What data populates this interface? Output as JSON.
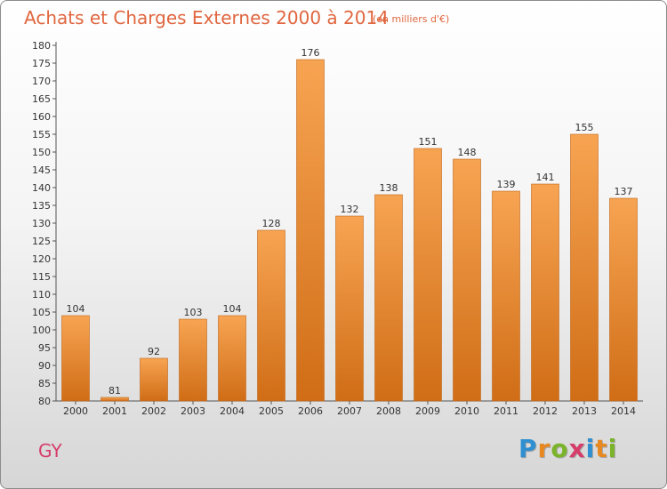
{
  "header": {
    "title": "Achats et Charges Externes 2000 à 2014",
    "unit": "(en milliers d'€)"
  },
  "commune": "GY",
  "logo": {
    "letters": [
      "P",
      "r",
      "o",
      "x",
      "i",
      "t",
      "i"
    ],
    "colors": [
      "#2f8fd0",
      "#e8891f",
      "#7bb42a",
      "#d63c6a",
      "#2f8fd0",
      "#e8891f",
      "#7bb42a"
    ]
  },
  "colors": {
    "bar_top": "#f7a452",
    "bar_bottom": "#d06d16",
    "title": "#e0663f",
    "commune": "#d63c6a"
  },
  "chart_data": {
    "type": "bar",
    "title": "Achats et Charges Externes 2000 à 2014",
    "categories": [
      "2000",
      "2001",
      "2002",
      "2003",
      "2004",
      "2005",
      "2006",
      "2007",
      "2008",
      "2009",
      "2010",
      "2011",
      "2012",
      "2013",
      "2014"
    ],
    "values": [
      104,
      81,
      92,
      103,
      104,
      128,
      176,
      132,
      138,
      151,
      148,
      139,
      141,
      155,
      137
    ],
    "ylim": [
      80,
      180
    ],
    "ytick_step": 5,
    "grid": false,
    "data_labels": true
  }
}
